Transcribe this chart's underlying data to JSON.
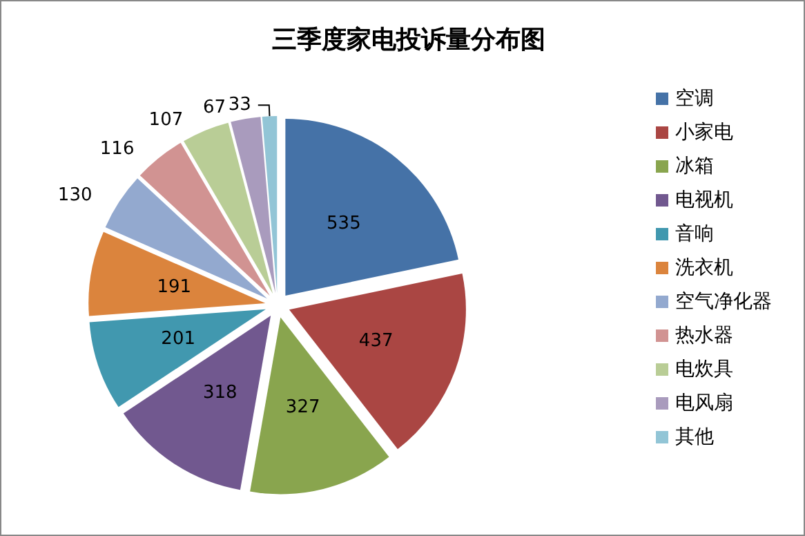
{
  "chart_data": {
    "type": "pie",
    "title": "三季度家电投诉量分布图",
    "categories": [
      "空调",
      "小家电",
      "冰箱",
      "电视机",
      "音响",
      "洗衣机",
      "空气净化器",
      "热水器",
      "电炊具",
      "电风扇",
      "其他"
    ],
    "values": [
      535,
      437,
      327,
      318,
      201,
      191,
      130,
      116,
      107,
      67,
      33
    ],
    "colors": [
      "#4572a7",
      "#aa4643",
      "#89a54e",
      "#71588f",
      "#4198af",
      "#db843d",
      "#93a9cf",
      "#d19392",
      "#b9cd96",
      "#a99bbd",
      "#92c5d6"
    ],
    "data_labels": true,
    "legend": "right"
  }
}
